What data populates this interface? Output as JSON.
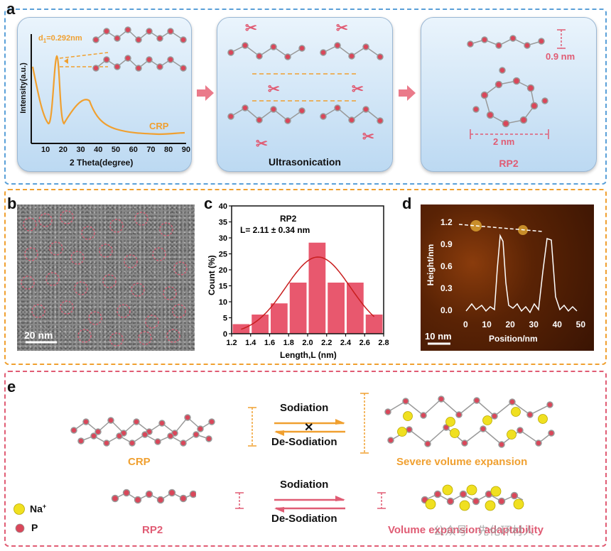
{
  "panel_a": {
    "label": "a",
    "xrd": {
      "d_label": "d",
      "d_sub": "1",
      "d_value": "=0.292nm",
      "ylabel": "Intensity(a.u.)",
      "xlabel": "2 Theta(degree)",
      "xticks": [
        "10",
        "20",
        "30",
        "40",
        "50",
        "60",
        "70",
        "80",
        "90"
      ],
      "series_label": "CRP"
    },
    "middle_caption": "Ultrasonication",
    "right_caption": "RP2",
    "dim_height": "0.9 nm",
    "dim_width": "2 nm"
  },
  "panel_b": {
    "label": "b",
    "scale": "20 nm"
  },
  "panel_c": {
    "label": "c",
    "title": "RP2",
    "stat": "L= 2.11 ± 0.34 nm"
  },
  "panel_d": {
    "label": "d",
    "scale": "10 nm",
    "ylabel": "Height/nm",
    "xlabel": "Position/nm",
    "yticks": [
      "1.2",
      "0.9",
      "0.6",
      "0.3",
      "0.0"
    ],
    "xticks": [
      "0",
      "10",
      "20",
      "30",
      "40",
      "50"
    ]
  },
  "panel_e": {
    "label": "e",
    "top": {
      "sodiation": "Sodiation",
      "desodiation": "De-Sodiation",
      "cross": "✕",
      "left_caption": "CRP",
      "right_caption": "Severe volume expansion"
    },
    "bottom": {
      "sodiation": "Sodiation",
      "desodiation": "De-Sodiation",
      "left_caption": "RP2",
      "right_caption": "Volume expansion adaptability"
    },
    "legend": {
      "na": "Na",
      "na_sup": "+",
      "p": "P"
    }
  },
  "watermark": "公众号 · 先化环材人",
  "colors": {
    "orange": "#f0a030",
    "pink": "#e05c74",
    "blue_dash": "#5aa0d8",
    "orange_dash": "#f0a030",
    "pink_dash": "#e05c74",
    "bar": "#e8586e",
    "fit": "#c81e1e",
    "na": "#f0e020",
    "p": "#d9475a"
  },
  "chart_data": {
    "type": "bar",
    "title": "RP2",
    "annotation": "L= 2.11 ± 0.34 nm",
    "xlabel": "Length,L (nm)",
    "ylabel": "Count (%)",
    "xlim": [
      1.2,
      2.8
    ],
    "ylim": [
      0,
      40
    ],
    "xticks": [
      "1.2",
      "1.4",
      "1.6",
      "1.8",
      "2.0",
      "2.2",
      "2.4",
      "2.6",
      "2.8"
    ],
    "yticks": [
      "0",
      "5",
      "10",
      "15",
      "20",
      "25",
      "30",
      "35",
      "40"
    ],
    "bin_width": 0.2,
    "x": [
      1.3,
      1.5,
      1.7,
      1.9,
      2.1,
      2.3,
      2.5,
      2.7
    ],
    "values": [
      3,
      6,
      9.5,
      16,
      28.5,
      16,
      16,
      6
    ],
    "fit": {
      "type": "gaussian",
      "mean": 2.11,
      "sd": 0.34,
      "peak": 24
    }
  }
}
